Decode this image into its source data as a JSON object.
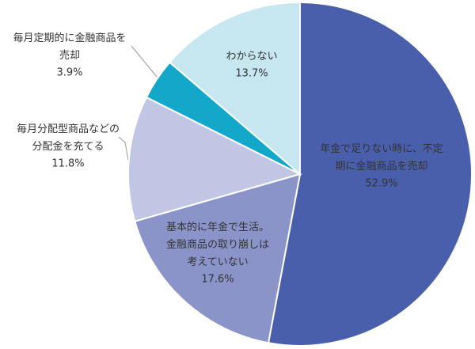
{
  "chart_data": {
    "type": "pie",
    "categories": [
      "年金で足りない時に、不定\n期に金融商品を売却",
      "基本的に年金で生活。\n金融商品の取り崩しは\n考えていない",
      "毎月分配型商品などの\n分配金を充てる",
      "毎月定期的に金融商品を\n売却",
      "わからない"
    ],
    "values": [
      52.9,
      17.6,
      11.8,
      3.9,
      13.7
    ],
    "value_labels": [
      "52.9%",
      "17.6%",
      "11.8%",
      "3.9%",
      "13.7%"
    ],
    "colors": [
      "#4a5fab",
      "#8a94c9",
      "#c1c6e5",
      "#13a8c9",
      "#c6e7f0"
    ]
  }
}
